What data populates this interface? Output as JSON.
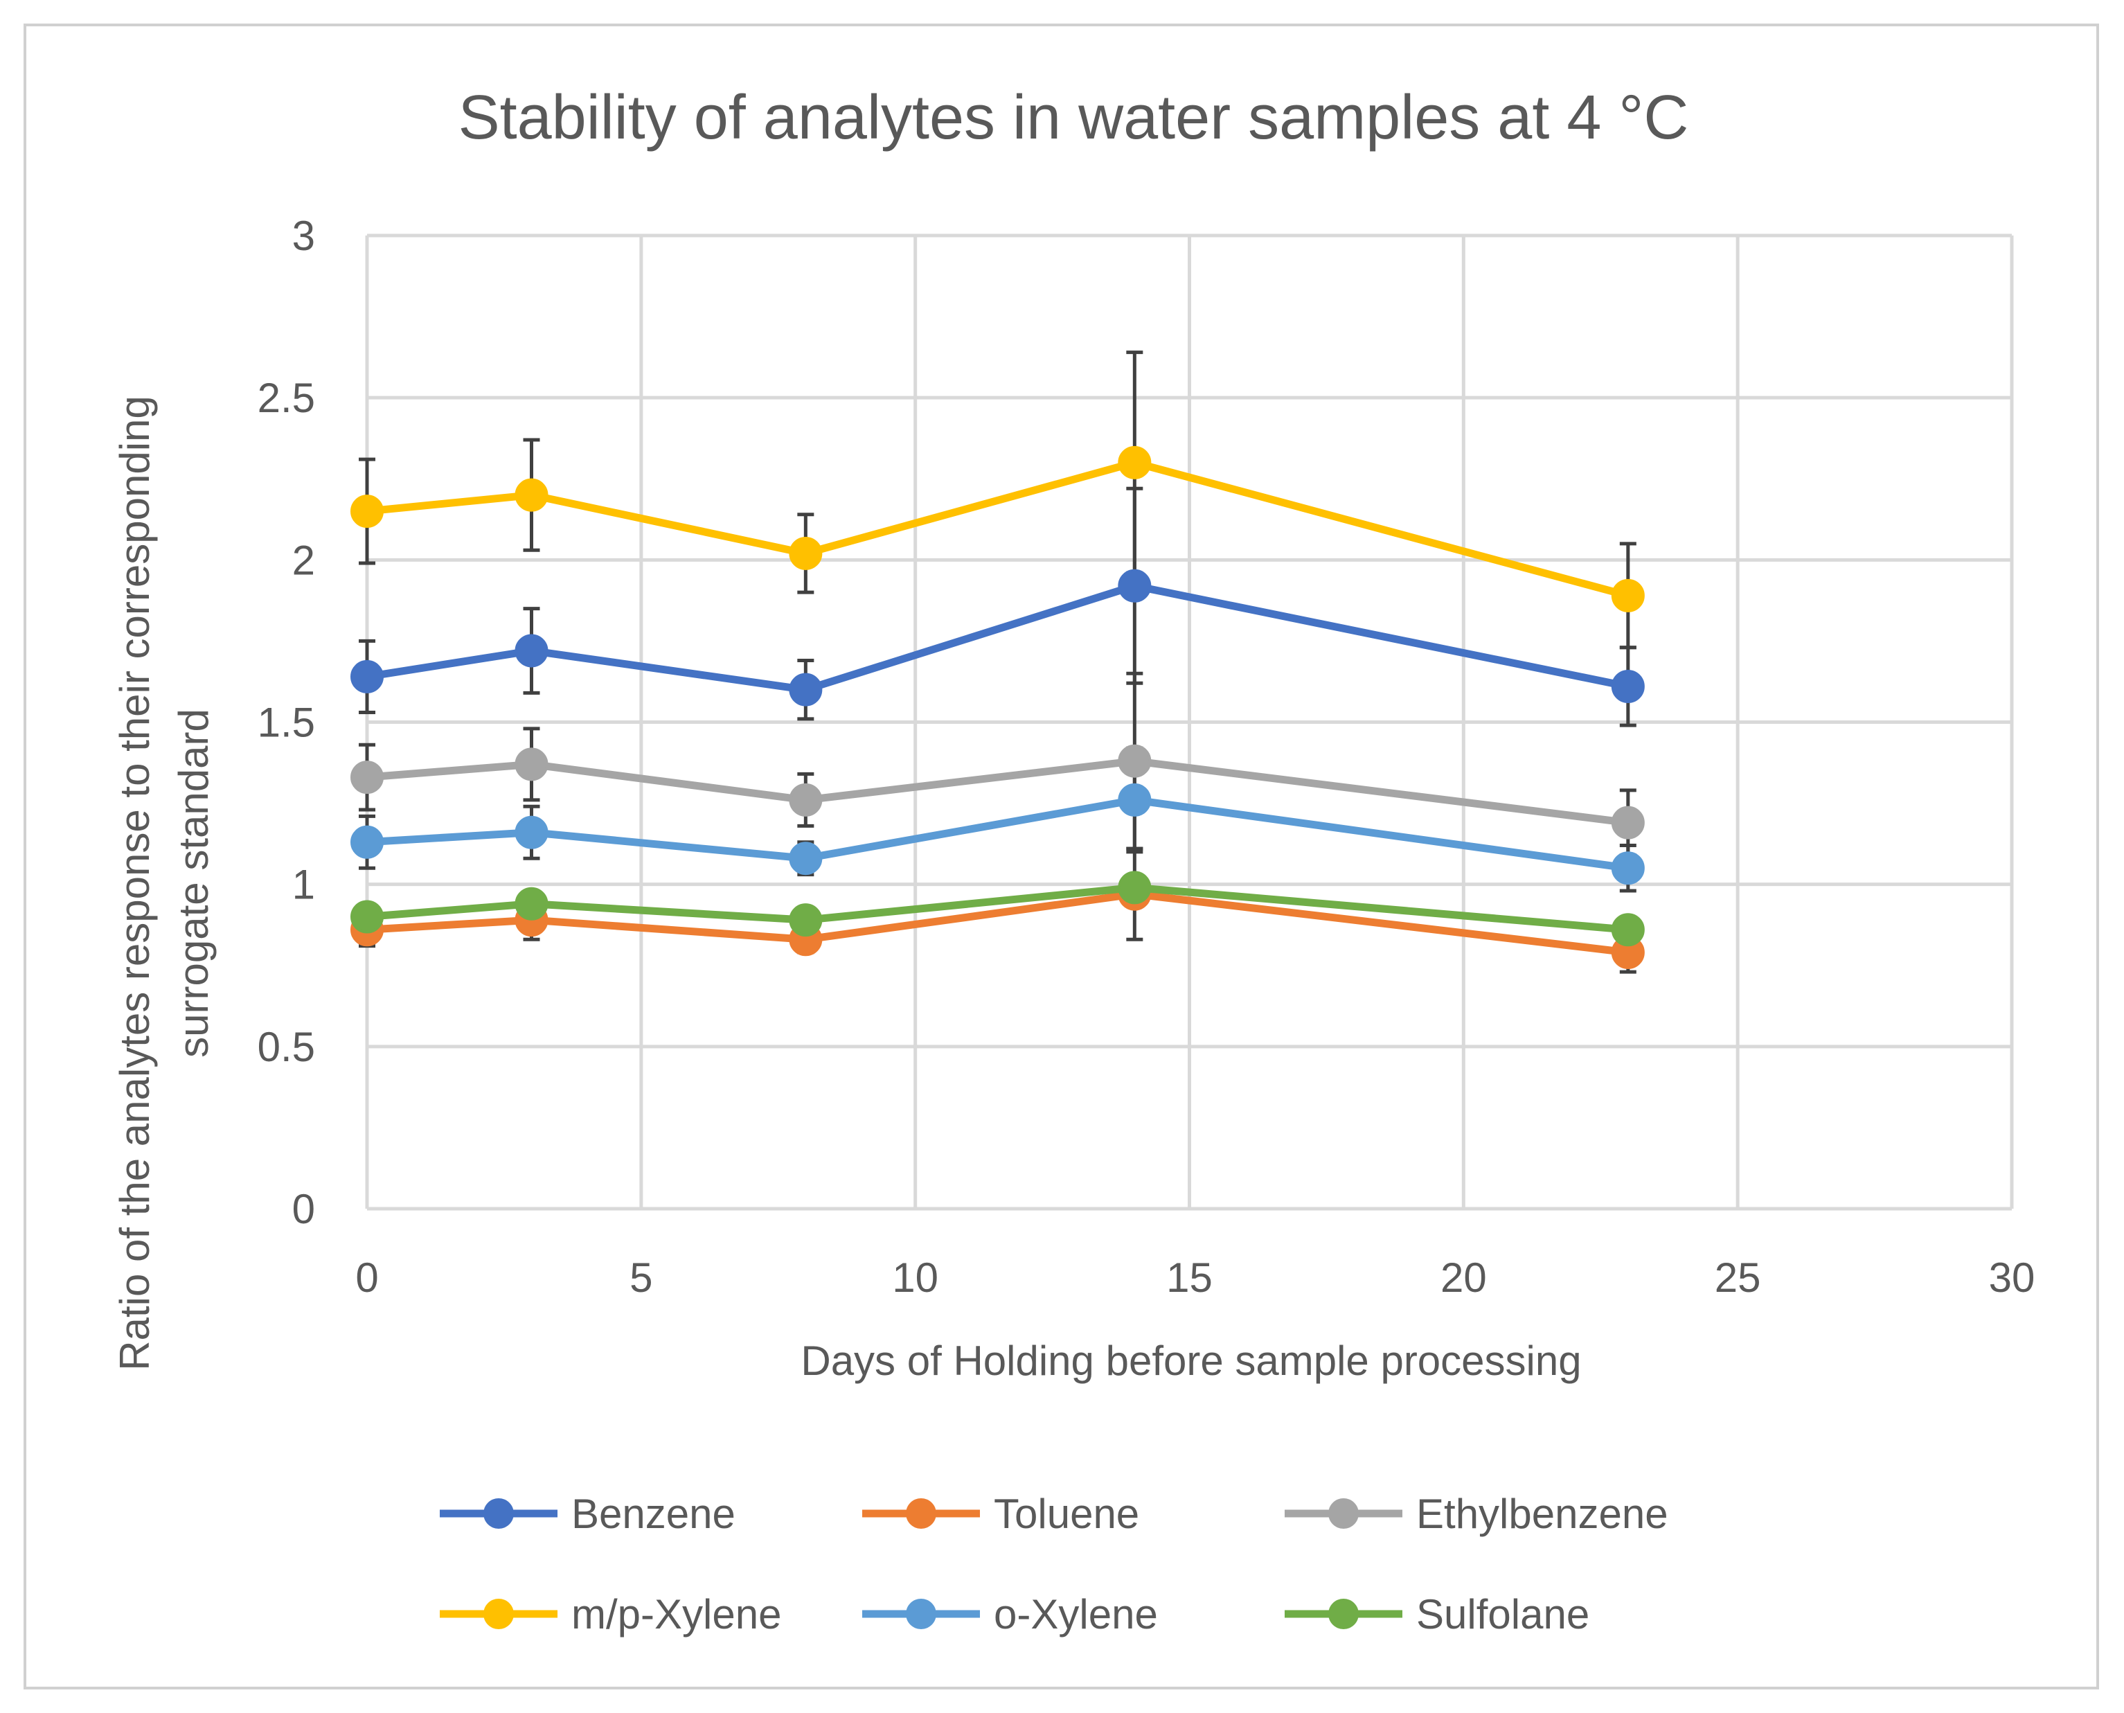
{
  "chart_data": {
    "type": "line",
    "title": "Stability of analytes in water samples at 4 °C",
    "xlabel": "Days of Holding before sample processing",
    "ylabel_lines": [
      "Ratio of the analytes response to their corresponding",
      "surrogate standard"
    ],
    "xlim": [
      0,
      30
    ],
    "ylim": [
      0,
      3
    ],
    "x_ticks": [
      0,
      5,
      10,
      15,
      20,
      25,
      30
    ],
    "y_ticks": [
      0,
      0.5,
      1,
      1.5,
      2,
      2.5,
      3
    ],
    "x_tick_labels": [
      "0",
      "5",
      "10",
      "15",
      "20",
      "25",
      "30"
    ],
    "y_tick_labels": [
      "0",
      "0.5",
      "1",
      "1.5",
      "2",
      "2.5",
      "3"
    ],
    "grid": true,
    "legend_position": "bottom",
    "x": [
      0,
      3,
      8,
      14,
      23
    ],
    "series": [
      {
        "name": "Benzene",
        "color": "#4472c4",
        "values": [
          1.64,
          1.72,
          1.6,
          1.92,
          1.61
        ],
        "errors": [
          0.11,
          0.13,
          0.09,
          0.3,
          0.12
        ]
      },
      {
        "name": "Toluene",
        "color": "#ed7d31",
        "values": [
          0.86,
          0.89,
          0.83,
          0.97,
          0.79
        ],
        "errors": [
          0.05,
          0.06,
          0.04,
          0.14,
          0.06
        ]
      },
      {
        "name": "Ethylbenzene",
        "color": "#a5a5a5",
        "values": [
          1.33,
          1.37,
          1.26,
          1.38,
          1.19
        ],
        "errors": [
          0.1,
          0.11,
          0.08,
          0.27,
          0.1
        ]
      },
      {
        "name": "m/p-Xylene",
        "color": "#ffc000",
        "values": [
          2.15,
          2.2,
          2.02,
          2.3,
          1.89
        ],
        "errors": [
          0.16,
          0.17,
          0.12,
          0.34,
          0.16
        ]
      },
      {
        "name": "o-Xylene",
        "color": "#5b9bd5",
        "values": [
          1.13,
          1.16,
          1.08,
          1.26,
          1.05
        ],
        "errors": [
          0.08,
          0.08,
          0.05,
          0.16,
          0.07
        ]
      },
      {
        "name": "Sulfolane",
        "color": "#70ad47",
        "values": [
          0.9,
          0.94,
          0.89,
          0.99,
          0.86
        ],
        "errors": [
          0.0,
          0.0,
          0.0,
          0.0,
          0.0
        ]
      }
    ]
  }
}
